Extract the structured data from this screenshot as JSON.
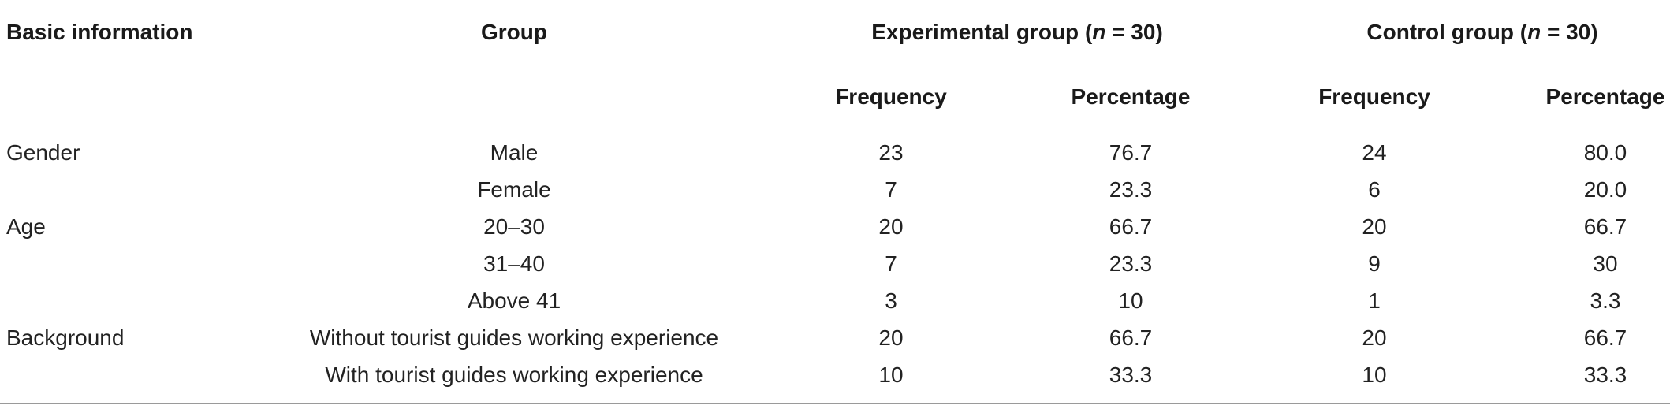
{
  "headers": {
    "basic_information": "Basic information",
    "group": "Group",
    "experimental_group_prefix": "Experimental group (",
    "experimental_group_n": "n",
    "experimental_group_suffix": " = 30)",
    "control_group_prefix": "Control group (",
    "control_group_n": "n",
    "control_group_suffix": " = 30)",
    "frequency": "Frequency",
    "percentage": "Percentage"
  },
  "rows": [
    {
      "category": "Gender",
      "group": "Male",
      "exp_freq": "23",
      "exp_pct": "76.7",
      "ctl_freq": "24",
      "ctl_pct": "80.0"
    },
    {
      "category": "",
      "group": "Female",
      "exp_freq": "7",
      "exp_pct": "23.3",
      "ctl_freq": "6",
      "ctl_pct": "20.0"
    },
    {
      "category": "Age",
      "group": "20–30",
      "exp_freq": "20",
      "exp_pct": "66.7",
      "ctl_freq": "20",
      "ctl_pct": "66.7"
    },
    {
      "category": "",
      "group": "31–40",
      "exp_freq": "7",
      "exp_pct": "23.3",
      "ctl_freq": "9",
      "ctl_pct": "30"
    },
    {
      "category": "",
      "group": "Above 41",
      "exp_freq": "3",
      "exp_pct": "10",
      "ctl_freq": "1",
      "ctl_pct": "3.3"
    },
    {
      "category": "Background",
      "group": "Without tourist guides working experience",
      "exp_freq": "20",
      "exp_pct": "66.7",
      "ctl_freq": "20",
      "ctl_pct": "66.7"
    },
    {
      "category": "",
      "group": "With tourist guides working experience",
      "exp_freq": "10",
      "exp_pct": "33.3",
      "ctl_freq": "10",
      "ctl_pct": "33.3"
    }
  ]
}
